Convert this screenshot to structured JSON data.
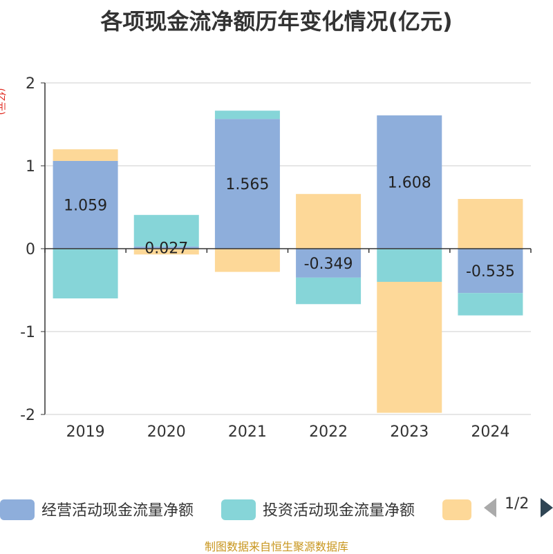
{
  "title": "各项现金流净额历年变化情况(亿元)",
  "unit_label": "(亿元)",
  "source": "制图数据来自恒生聚源数据库",
  "legend": {
    "items": [
      {
        "label": "经营活动现金流量净额",
        "color": "#8eaedb"
      },
      {
        "label": "投资活动现金流量净额",
        "color": "#86d5d8"
      },
      {
        "label": "",
        "color": "#fdd898"
      }
    ],
    "page": "1/2"
  },
  "chart_data": {
    "type": "bar",
    "stacked": true,
    "categories": [
      "2019",
      "2020",
      "2021",
      "2022",
      "2023",
      "2024"
    ],
    "ylim": [
      -2,
      2
    ],
    "yticks": [
      "2",
      "1",
      "0",
      "-1",
      "-2"
    ],
    "grid": true,
    "series": [
      {
        "name": "经营活动现金流量净额",
        "color": "#8eaedb",
        "values": [
          1.059,
          0.027,
          1.565,
          -0.349,
          1.608,
          -0.535
        ],
        "labels": [
          "1.059",
          "0.027",
          "1.565",
          "-0.349",
          "1.608",
          "-0.535"
        ]
      },
      {
        "name": "投资活动现金流量净额",
        "color": "#86d5d8",
        "values": [
          -0.6,
          0.38,
          0.1,
          -0.32,
          -0.4,
          -0.27
        ]
      },
      {
        "name": "",
        "color": "#fdd898",
        "values": [
          0.14,
          -0.07,
          -0.28,
          0.66,
          -1.58,
          0.6
        ]
      }
    ]
  }
}
